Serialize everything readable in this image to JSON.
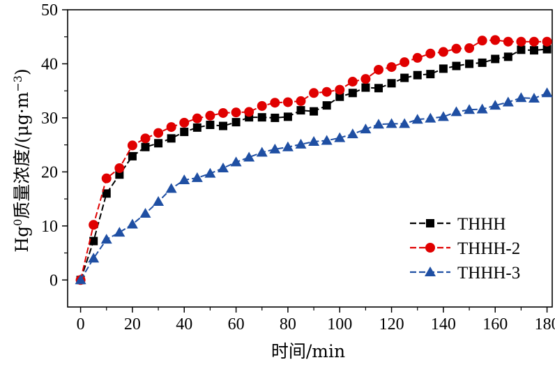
{
  "chart_data": {
    "type": "line",
    "xlabel": "时间/min",
    "ylabel_parts": {
      "prefix": "Hg",
      "superscript": "0",
      "middle": "质量浓度/(μg·m",
      "unit_superscript": "−3",
      "suffix": ")"
    },
    "xlim": [
      -5,
      182
    ],
    "ylim": [
      -5,
      50
    ],
    "xticks": [
      0,
      20,
      40,
      60,
      80,
      100,
      120,
      140,
      160,
      180
    ],
    "yticks": [
      0,
      10,
      20,
      30,
      40,
      50
    ],
    "grid": false,
    "legend_position": "bottom-right",
    "x": [
      0,
      5,
      10,
      15,
      20,
      25,
      30,
      35,
      40,
      45,
      50,
      55,
      60,
      65,
      70,
      75,
      80,
      85,
      90,
      95,
      100,
      105,
      110,
      115,
      120,
      125,
      130,
      135,
      140,
      145,
      150,
      155,
      160,
      165,
      170,
      175,
      180
    ],
    "series": [
      {
        "name": "THHH",
        "color": "#000000",
        "marker": "square",
        "dash": "dash",
        "values": [
          0,
          7.2,
          16,
          19.5,
          22.9,
          24.6,
          25.3,
          26.2,
          27.4,
          28.2,
          28.7,
          28.5,
          29.2,
          30.1,
          30.1,
          30,
          30.2,
          31.4,
          31.2,
          32.3,
          33.9,
          34.6,
          35.6,
          35.5,
          36.4,
          37.4,
          37.9,
          38.1,
          39.1,
          39.6,
          40,
          40.2,
          40.9,
          41.3,
          42.6,
          42.5,
          42.7
        ]
      },
      {
        "name": "THHH-2",
        "color": "#e00000",
        "marker": "circle",
        "dash": "dash",
        "values": [
          0,
          10.2,
          18.8,
          20.7,
          24.9,
          26.2,
          27.2,
          28.3,
          29.1,
          29.9,
          30.4,
          30.9,
          31,
          31.1,
          32.2,
          32.8,
          32.9,
          33.1,
          34.6,
          34.8,
          35.2,
          36.7,
          37.2,
          38.9,
          39.4,
          40.3,
          41.1,
          41.9,
          42.2,
          42.8,
          42.9,
          44.3,
          44.4,
          44.1,
          44.1,
          44.1,
          44.1
        ]
      },
      {
        "name": "THHH-3",
        "color": "#1f4fa3",
        "marker": "triangle",
        "dash": "dash",
        "values": [
          0,
          4,
          7.5,
          8.8,
          10.3,
          12.3,
          14.5,
          16.9,
          18.5,
          18.9,
          19.7,
          20.7,
          21.8,
          22.7,
          23.6,
          24.2,
          24.6,
          25.1,
          25.6,
          25.8,
          26.3,
          27,
          27.9,
          28.8,
          28.9,
          28.9,
          29.7,
          29.9,
          30.2,
          31.1,
          31.5,
          31.6,
          32.3,
          32.9,
          33.7,
          33.6,
          34.6
        ]
      }
    ]
  }
}
